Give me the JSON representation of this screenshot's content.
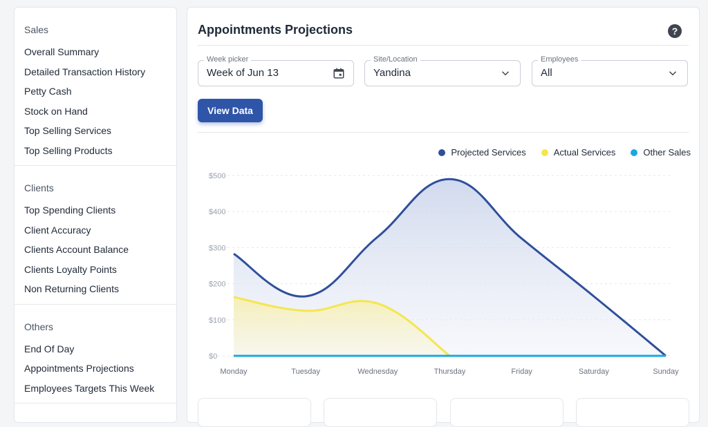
{
  "sidebar": {
    "sections": [
      {
        "title": "Sales",
        "items": [
          "Overall Summary",
          "Detailed Transaction History",
          "Petty Cash",
          "Stock on Hand",
          "Top Selling Services",
          "Top Selling Products"
        ]
      },
      {
        "title": "Clients",
        "items": [
          "Top Spending Clients",
          "Client Accuracy",
          "Clients Account Balance",
          "Clients Loyalty Points",
          "Non Returning Clients"
        ]
      },
      {
        "title": "Others",
        "items": [
          "End Of Day",
          "Appointments Projections",
          "Employees Targets This Week"
        ]
      }
    ]
  },
  "main": {
    "title": "Appointments Projections",
    "help_icon": "question-circle-icon",
    "filters": {
      "week": {
        "label": "Week picker",
        "value": "Week of Jun 13",
        "icon": "calendar-icon"
      },
      "site": {
        "label": "Site/Location",
        "value": "Yandina",
        "icon": "chevron-down-icon"
      },
      "employees": {
        "label": "Employees",
        "value": "All",
        "icon": "chevron-down-icon"
      }
    },
    "view_button": "View Data"
  },
  "colors": {
    "projected": "#2f4f9a",
    "actual": "#f4e64f",
    "other": "#1aa8e0",
    "accent": "#2f55a8"
  },
  "chart_data": {
    "type": "area",
    "categories": [
      "Monday",
      "Tuesday",
      "Wednesday",
      "Thursday",
      "Friday",
      "Saturday",
      "Sunday"
    ],
    "y_ticks": [
      "$0",
      "$100",
      "$200",
      "$300",
      "$400",
      "$500"
    ],
    "ylim": [
      0,
      500
    ],
    "grid": true,
    "legend_position": "top-right",
    "series": [
      {
        "name": "Projected Services",
        "values": [
          283,
          165,
          330,
          490,
          325,
          165,
          0
        ]
      },
      {
        "name": "Actual Services",
        "values": [
          163,
          125,
          145,
          0,
          null,
          null,
          null
        ]
      },
      {
        "name": "Other Sales",
        "values": [
          0,
          0,
          0,
          0,
          0,
          0,
          0
        ]
      }
    ]
  }
}
